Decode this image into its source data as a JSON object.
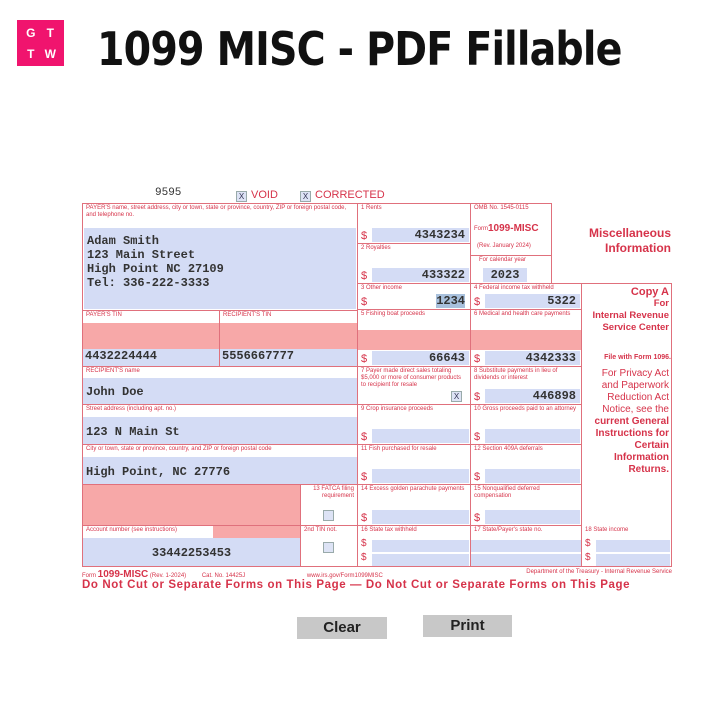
{
  "logo": {
    "letters": [
      "G",
      "T",
      "T",
      "W"
    ],
    "color": "#f0146e"
  },
  "title": "1099 MISC - PDF Fillable",
  "form": {
    "code": "9595",
    "void_label": "VOID",
    "corrected_label": "CORRECTED",
    "void_checked": "X",
    "corrected_checked": "X",
    "payer_label": "PAYER'S name, street address, city or town, state or province, country, ZIP or foreign postal code, and telephone no.",
    "payer_lines": [
      "Adam Smith",
      "123 Main Street",
      "High Point NC 27109",
      "Tel: 336-222-3333"
    ],
    "payer_tin_label": "PAYER'S TIN",
    "payer_tin": "4432224444",
    "recipient_tin_label": "RECIPIENT'S TIN",
    "recipient_tin": "5556667777",
    "recipient_name_label": "RECIPIENT'S name",
    "recipient_name": "John Doe",
    "street_label": "Street address (including apt. no.)",
    "street": "123 N Main St",
    "city_label": "City or town, state or province, country, and ZIP or foreign postal code",
    "city": "High Point, NC 27776",
    "fatca_label": "13 FATCA filing requirement",
    "account_label": "Account number (see instructions)",
    "account": "33442253453",
    "tin2_label": "2nd TIN not.",
    "omb": "OMB No. 1545-0115",
    "form_prefix": "Form",
    "form_name": "1099-MISC",
    "rev": "(Rev. January 2024)",
    "calendar_label": "For calendar year",
    "year": "2023",
    "currency": "$",
    "boxes": {
      "b1": {
        "label": "1 Rents",
        "value": "4343234"
      },
      "b2": {
        "label": "2 Royalties",
        "value": "433322"
      },
      "b3": {
        "label": "3 Other income",
        "value": "1234"
      },
      "b4": {
        "label": "4 Federal income tax withheld",
        "value": "5322"
      },
      "b5": {
        "label": "5 Fishing boat proceeds",
        "value": "66643"
      },
      "b6": {
        "label": "6 Medical and health care payments",
        "value": "4342333"
      },
      "b7": {
        "label": "7 Payer made direct sales totaling $5,000 or more of consumer products to recipient for resale",
        "value": "X"
      },
      "b8": {
        "label": "8 Substitute payments in lieu of dividends or interest",
        "value": "446898"
      },
      "b9": {
        "label": "9 Crop insurance proceeds",
        "value": ""
      },
      "b10": {
        "label": "10 Gross proceeds paid to an attorney",
        "value": ""
      },
      "b11": {
        "label": "11 Fish purchased for resale",
        "value": ""
      },
      "b12": {
        "label": "12 Section 409A deferrals",
        "value": ""
      },
      "b14": {
        "label": "14 Excess golden parachute payments",
        "value": ""
      },
      "b15": {
        "label": "15 Nonqualified deferred compensation",
        "value": ""
      },
      "b16": {
        "label": "16 State tax withheld",
        "value": ""
      },
      "b17": {
        "label": "17 State/Payer's state no.",
        "value": ""
      },
      "b18": {
        "label": "18 State income",
        "value": ""
      }
    },
    "side_title": [
      "Miscellaneous",
      "Information"
    ],
    "copy": [
      "Copy A",
      "For",
      "Internal Revenue",
      "Service Center"
    ],
    "file_with": "File with Form 1096.",
    "privacy": [
      "For Privacy Act",
      "and Paperwork",
      "Reduction Act",
      "Notice, see the",
      "current General",
      "Instructions for",
      "Certain",
      "Information",
      "Returns."
    ],
    "footer_form": "Form",
    "footer_name": "1099-MISC",
    "footer_rev": "(Rev. 1-2024)",
    "footer_cat": "Cat. No. 14425J",
    "footer_url": "www.irs.gov/Form1099MISC",
    "footer_dept": "Department of the Treasury - Internal Revenue Service",
    "warning": "Do Not Cut or Separate Forms on This Page — Do Not Cut or Separate Forms on This Page"
  },
  "buttons": {
    "clear": "Clear",
    "print": "Print"
  }
}
